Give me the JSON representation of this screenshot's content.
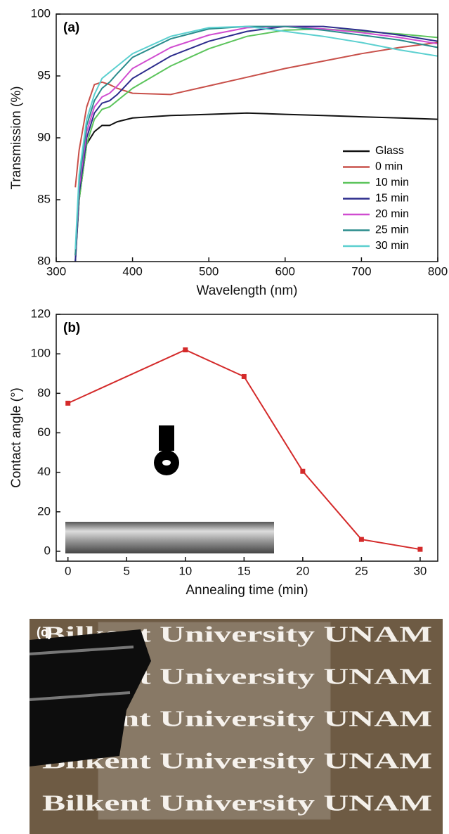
{
  "chart_data": [
    {
      "type": "line",
      "title": "(a)",
      "xlabel": "Wavelength (nm)",
      "ylabel": "Transmission (%)",
      "x": [
        325,
        330,
        340,
        350,
        360,
        370,
        380,
        400,
        450,
        500,
        550,
        600,
        650,
        700,
        750,
        800
      ],
      "xlim": [
        300,
        800
      ],
      "xticks": [
        300,
        400,
        500,
        600,
        700,
        800
      ],
      "ylim": [
        80,
        100
      ],
      "yticks": [
        80,
        85,
        90,
        95,
        100
      ],
      "legend": "lower right",
      "series": [
        {
          "name": "Glass",
          "color": "#111111",
          "values": [
            80,
            85,
            89.5,
            90.5,
            91,
            91,
            91.3,
            91.6,
            91.8,
            91.9,
            92,
            91.9,
            91.8,
            91.7,
            91.6,
            91.5
          ]
        },
        {
          "name": "0 min",
          "color": "#c8504a",
          "values": [
            86,
            89,
            92.5,
            94.3,
            94.5,
            94.3,
            94,
            93.6,
            93.5,
            94.2,
            94.9,
            95.6,
            96.2,
            96.8,
            97.3,
            97.7
          ]
        },
        {
          "name": "10 min",
          "color": "#5cc45c",
          "values": [
            80.5,
            85,
            89.5,
            91.5,
            92.3,
            92.5,
            93,
            94,
            95.8,
            97.2,
            98.2,
            98.7,
            98.8,
            98.6,
            98.4,
            98.1
          ]
        },
        {
          "name": "15 min",
          "color": "#2c2c8c",
          "values": [
            80,
            85.5,
            90,
            92,
            92.8,
            93,
            93.5,
            94.8,
            96.6,
            97.8,
            98.6,
            99,
            99,
            98.7,
            98.3,
            97.8
          ]
        },
        {
          "name": "20 min",
          "color": "#d04cd0",
          "values": [
            80.5,
            86,
            90.5,
            92.5,
            93.3,
            93.6,
            94.2,
            95.6,
            97.3,
            98.3,
            98.9,
            99,
            98.8,
            98.5,
            98.1,
            97.6
          ]
        },
        {
          "name": "25 min",
          "color": "#2a8c8c",
          "values": [
            80.5,
            86.5,
            91,
            93,
            94,
            94.5,
            95.2,
            96.5,
            98,
            98.8,
            99,
            99,
            98.7,
            98.3,
            97.9,
            97.3
          ]
        },
        {
          "name": "30 min",
          "color": "#5cd0d0",
          "values": [
            81,
            87,
            91.5,
            93.5,
            94.8,
            95.3,
            95.8,
            96.8,
            98.2,
            98.9,
            99,
            98.6,
            98.2,
            97.7,
            97.1,
            96.6
          ]
        }
      ]
    },
    {
      "type": "line",
      "title": "(b)",
      "xlabel": "Annealing time (min)",
      "ylabel": "Contact angle (°)",
      "x": [
        0,
        10,
        15,
        20,
        25,
        30
      ],
      "values": [
        75,
        102,
        88.5,
        40.5,
        6,
        1
      ],
      "color": "#d42a2a",
      "marker": "square",
      "xlim": [
        -1,
        31.5
      ],
      "xticks": [
        0,
        5,
        10,
        15,
        20,
        25,
        30
      ],
      "ylim": [
        -5,
        120
      ],
      "yticks": [
        0,
        20,
        40,
        60,
        80,
        100,
        120
      ]
    }
  ],
  "photo": {
    "label": "(c)",
    "lines": [
      "Bilkent University UNAM",
      "Bilkent University UNAM",
      "Bilkent University UNAM",
      "Bilkent University UNAM",
      "Bilkent University UNAM"
    ]
  }
}
